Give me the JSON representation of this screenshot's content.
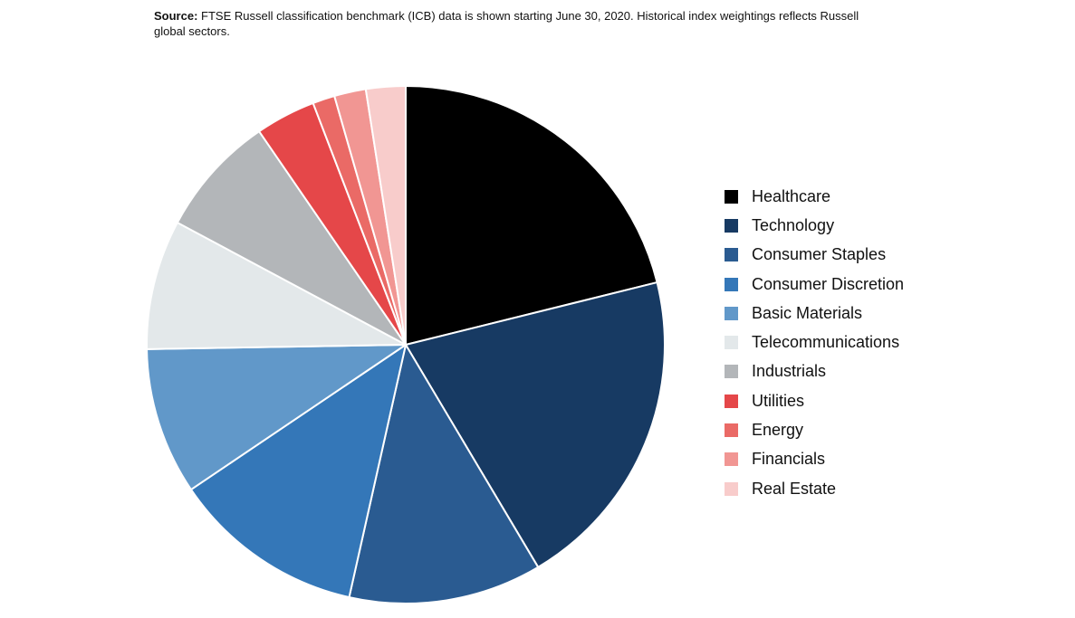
{
  "source": {
    "label": "Source:",
    "text": " FTSE Russell classification benchmark (ICB) data is shown starting June 30, 2020. Historical index weightings reflects Russell global sectors."
  },
  "chart_data": {
    "type": "pie",
    "title": "",
    "legend_position": "right",
    "start_angle": "12 o'clock, clockwise",
    "series": [
      {
        "label": "Healthcare",
        "value": 21.4,
        "color": "#000000"
      },
      {
        "label": "Technology",
        "value": 20.6,
        "color": "#173a63"
      },
      {
        "label": "Consumer Staples",
        "value": 12.2,
        "color": "#2a5b91"
      },
      {
        "label": "Consumer Discretion",
        "value": 12.2,
        "color": "#3477b8"
      },
      {
        "label": "Basic Materials",
        "value": 9.3,
        "color": "#6198c9"
      },
      {
        "label": "Telecommunications",
        "value": 8.2,
        "color": "#e3e8ea"
      },
      {
        "label": "Industrials",
        "value": 7.7,
        "color": "#b3b6b9"
      },
      {
        "label": "Utilities",
        "value": 3.8,
        "color": "#e54749"
      },
      {
        "label": "Energy",
        "value": 1.4,
        "color": "#ea6a66"
      },
      {
        "label": "Financials",
        "value": 2.0,
        "color": "#f19693"
      },
      {
        "label": "Real Estate",
        "value": 2.5,
        "color": "#f8cccb"
      }
    ]
  }
}
